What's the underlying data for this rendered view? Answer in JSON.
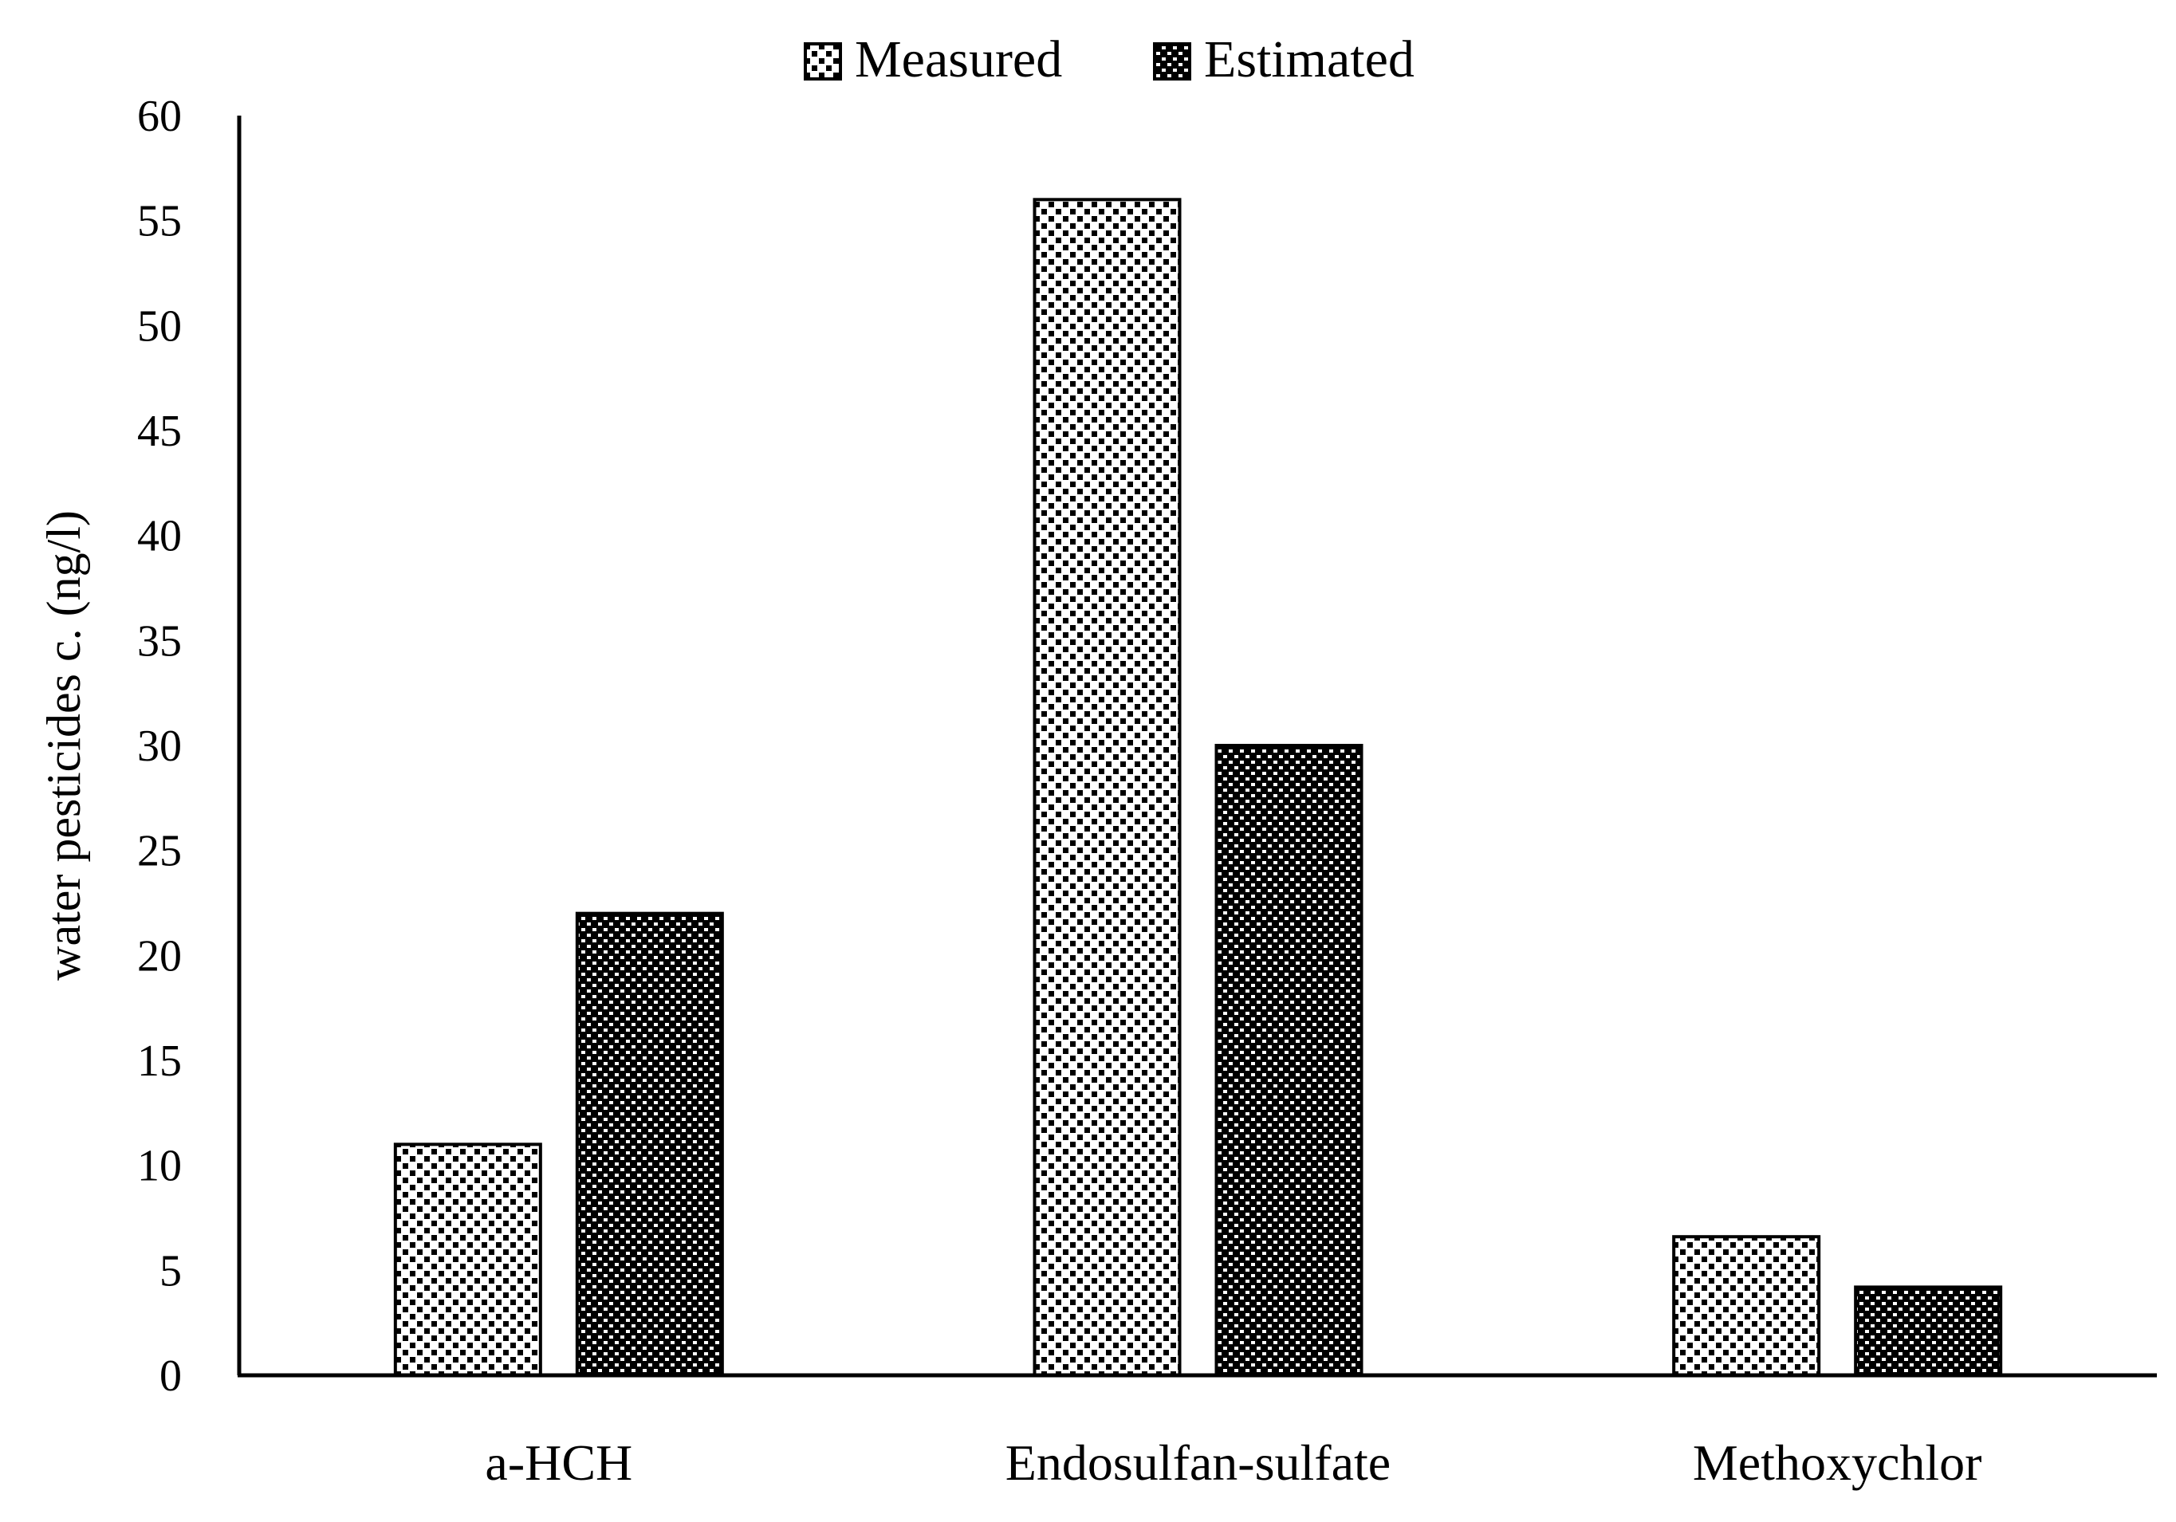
{
  "chart_data": {
    "type": "bar",
    "title": "",
    "xlabel": "",
    "ylabel": "water pesticides c. (ng/l)",
    "ylim": [
      0,
      60
    ],
    "yticks": [
      0,
      5,
      10,
      15,
      20,
      25,
      30,
      35,
      40,
      45,
      50,
      55,
      60
    ],
    "categories": [
      "a-HCH",
      "Endosulfan-sulfate",
      "Methoxychlor"
    ],
    "series": [
      {
        "name": "Measured",
        "values": [
          11,
          56,
          6.6
        ],
        "pattern": "dots-sparse"
      },
      {
        "name": "Estimated",
        "values": [
          22,
          30,
          4.2
        ],
        "pattern": "dots-dense"
      }
    ],
    "legend_position": "top-center",
    "grid": false
  },
  "colors": {
    "ink": "#000000",
    "background": "#ffffff"
  }
}
